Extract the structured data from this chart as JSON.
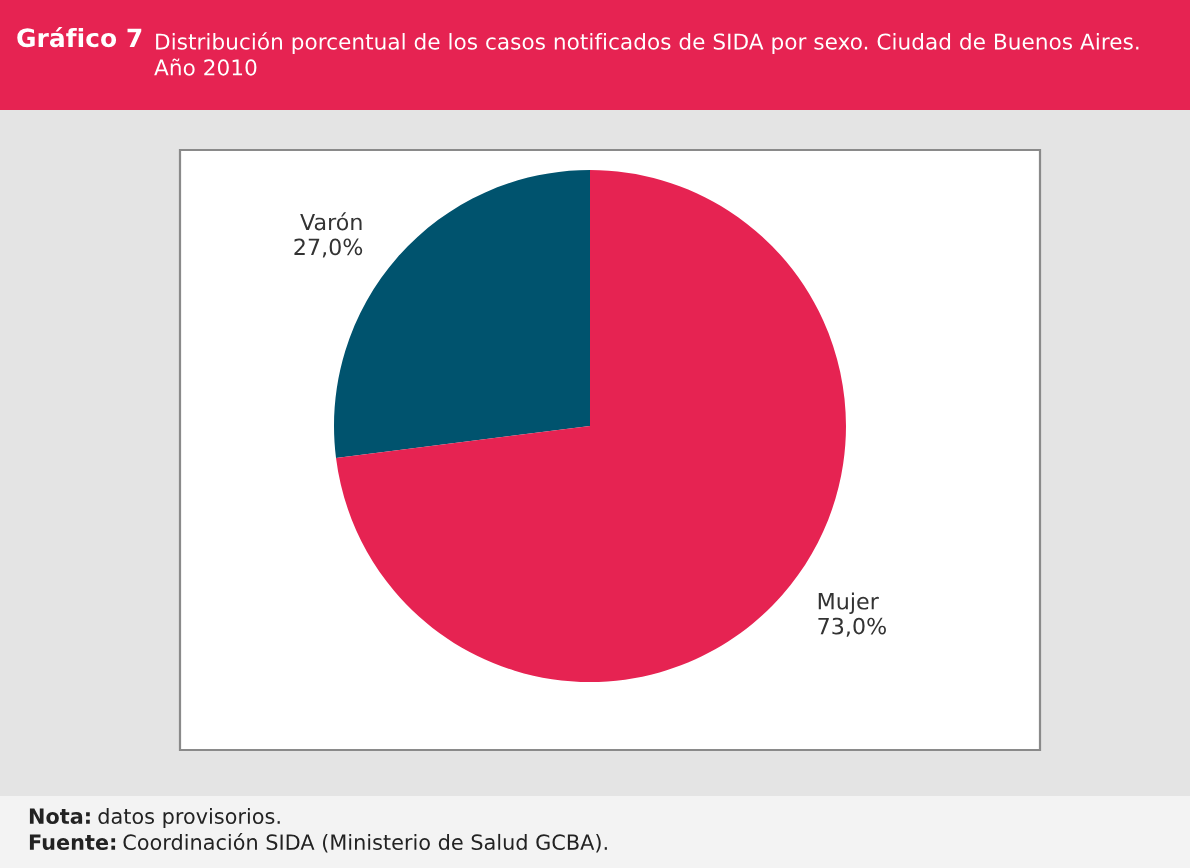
{
  "chart_data": {
    "type": "pie",
    "title": "Gráfico 7",
    "subtitle": "Distribución porcentual de los casos notificados de SIDA por sexo. Ciudad de Buenos Aires.\nAño 2010",
    "categories": [
      "Varón",
      "Mujer"
    ],
    "values": [
      27.0,
      73.0
    ],
    "colors": [
      "#00536e",
      "#e62352"
    ],
    "value_labels": [
      "27,0%",
      "73,0%"
    ],
    "annotations": [
      "Nota: datos provisorios.",
      "Fuente: Coordinación SIDA (Ministerio de Salud GCBA)."
    ],
    "legend": false
  }
}
